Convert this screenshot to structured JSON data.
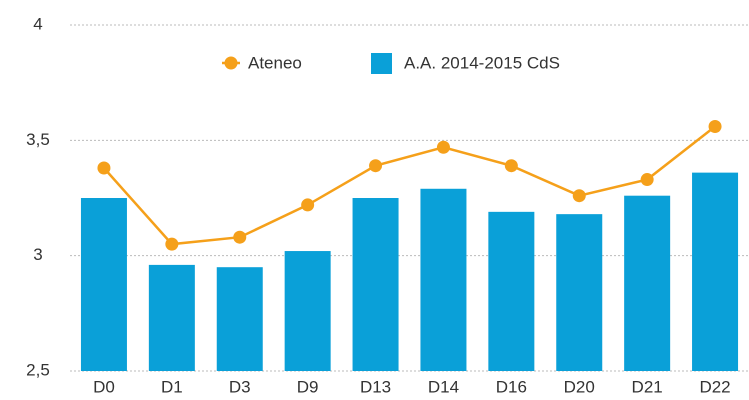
{
  "chart_data": {
    "type": "bar",
    "categories": [
      "D0",
      "D1",
      "D3",
      "D9",
      "D13",
      "D14",
      "D16",
      "D20",
      "D21",
      "D22"
    ],
    "series": [
      {
        "name": "Ateneo",
        "type": "line",
        "color": "#f5a01a",
        "values": [
          3.38,
          3.05,
          3.08,
          3.22,
          3.39,
          3.47,
          3.39,
          3.26,
          3.33,
          3.56
        ]
      },
      {
        "name": "A.A. 2014-2015 CdS",
        "type": "bar",
        "color": "#0aa0d8",
        "values": [
          3.25,
          2.96,
          2.95,
          3.02,
          3.25,
          3.29,
          3.19,
          3.18,
          3.26,
          3.36
        ]
      }
    ],
    "ylim": [
      2.5,
      4
    ],
    "yticks": [
      {
        "value": 2.5,
        "label": "2,5"
      },
      3,
      {
        "value": 3.5,
        "label": "3,5"
      },
      4
    ],
    "grid": true,
    "legend": "top"
  }
}
